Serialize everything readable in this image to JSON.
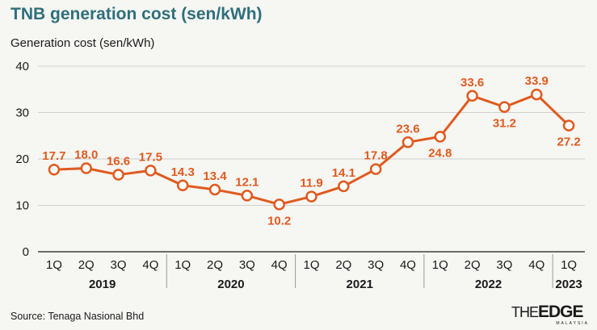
{
  "chart_data": {
    "type": "line",
    "title": "TNB generation cost (sen/kWh)",
    "ylabel": "Generation cost (sen/kWh)",
    "xlabel": "",
    "ylim": [
      0,
      40
    ],
    "yticks": [
      0,
      10,
      20,
      30,
      40
    ],
    "categories": [
      "1Q",
      "2Q",
      "3Q",
      "4Q",
      "1Q",
      "2Q",
      "3Q",
      "4Q",
      "1Q",
      "2Q",
      "3Q",
      "4Q",
      "1Q",
      "2Q",
      "3Q",
      "4Q",
      "1Q"
    ],
    "values": [
      17.7,
      18.0,
      16.6,
      17.5,
      14.3,
      13.4,
      12.1,
      10.2,
      11.9,
      14.1,
      17.8,
      23.6,
      24.8,
      33.6,
      31.2,
      33.9,
      27.2
    ],
    "value_labels": [
      "17.7",
      "18.0",
      "16.6",
      "17.5",
      "14.3",
      "13.4",
      "12.1",
      "10.2",
      "11.9",
      "14.1",
      "17.8",
      "23.6",
      "24.8",
      "33.6",
      "31.2",
      "33.9",
      "27.2"
    ],
    "label_position": [
      "above",
      "above",
      "above",
      "above",
      "above",
      "above",
      "above",
      "below",
      "above",
      "above",
      "above",
      "above",
      "below",
      "above",
      "below",
      "above",
      "below"
    ],
    "year_groups": [
      {
        "label": "2019",
        "count": 4
      },
      {
        "label": "2020",
        "count": 4
      },
      {
        "label": "2021",
        "count": 4
      },
      {
        "label": "2022",
        "count": 4
      },
      {
        "label": "2023",
        "count": 1
      }
    ],
    "grid": true,
    "series_color": "#e05a1e"
  },
  "footer": {
    "source": "Source: Tenaga Nasional Bhd",
    "logo_the": "THE",
    "logo_edge": "EDGE",
    "logo_tag": "MALAYSIA"
  }
}
